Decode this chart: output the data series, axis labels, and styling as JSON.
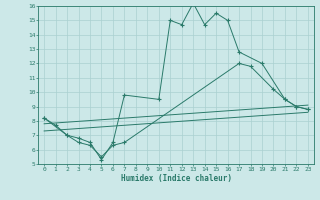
{
  "xlabel": "Humidex (Indice chaleur)",
  "background_color": "#cce8e8",
  "grid_color": "#aad0d0",
  "line_color": "#2a7a6a",
  "xlim": [
    -0.5,
    23.5
  ],
  "ylim": [
    5,
    16
  ],
  "xtick_labels": [
    "0",
    "1",
    "2",
    "3",
    "4",
    "5",
    "6",
    "7",
    "8",
    "9",
    "10",
    "11",
    "12",
    "13",
    "14",
    "15",
    "16",
    "17",
    "18",
    "19",
    "20",
    "21",
    "22",
    "23"
  ],
  "ytick_labels": [
    "5",
    "6",
    "7",
    "8",
    "9",
    "10",
    "11",
    "12",
    "13",
    "14",
    "15",
    "16"
  ],
  "line1_x": [
    0,
    1,
    2,
    3,
    4,
    5,
    6,
    7,
    10,
    11,
    12,
    13,
    14,
    15,
    16,
    17,
    19,
    21,
    22,
    23
  ],
  "line1_y": [
    8.2,
    7.7,
    7.0,
    6.8,
    6.5,
    5.3,
    6.5,
    9.8,
    9.5,
    15.0,
    14.7,
    16.2,
    14.7,
    15.5,
    15.0,
    12.8,
    12.0,
    9.5,
    9.0,
    8.8
  ],
  "line2_x": [
    0,
    2,
    3,
    4,
    5,
    6,
    7,
    17,
    18,
    20,
    21,
    22,
    23
  ],
  "line2_y": [
    8.2,
    7.0,
    6.5,
    6.3,
    5.5,
    6.3,
    6.5,
    12.0,
    11.8,
    10.2,
    9.5,
    9.0,
    8.8
  ],
  "line3_x": [
    0,
    23
  ],
  "line3_y": [
    7.8,
    9.1
  ],
  "line4_x": [
    0,
    23
  ],
  "line4_y": [
    7.3,
    8.6
  ]
}
